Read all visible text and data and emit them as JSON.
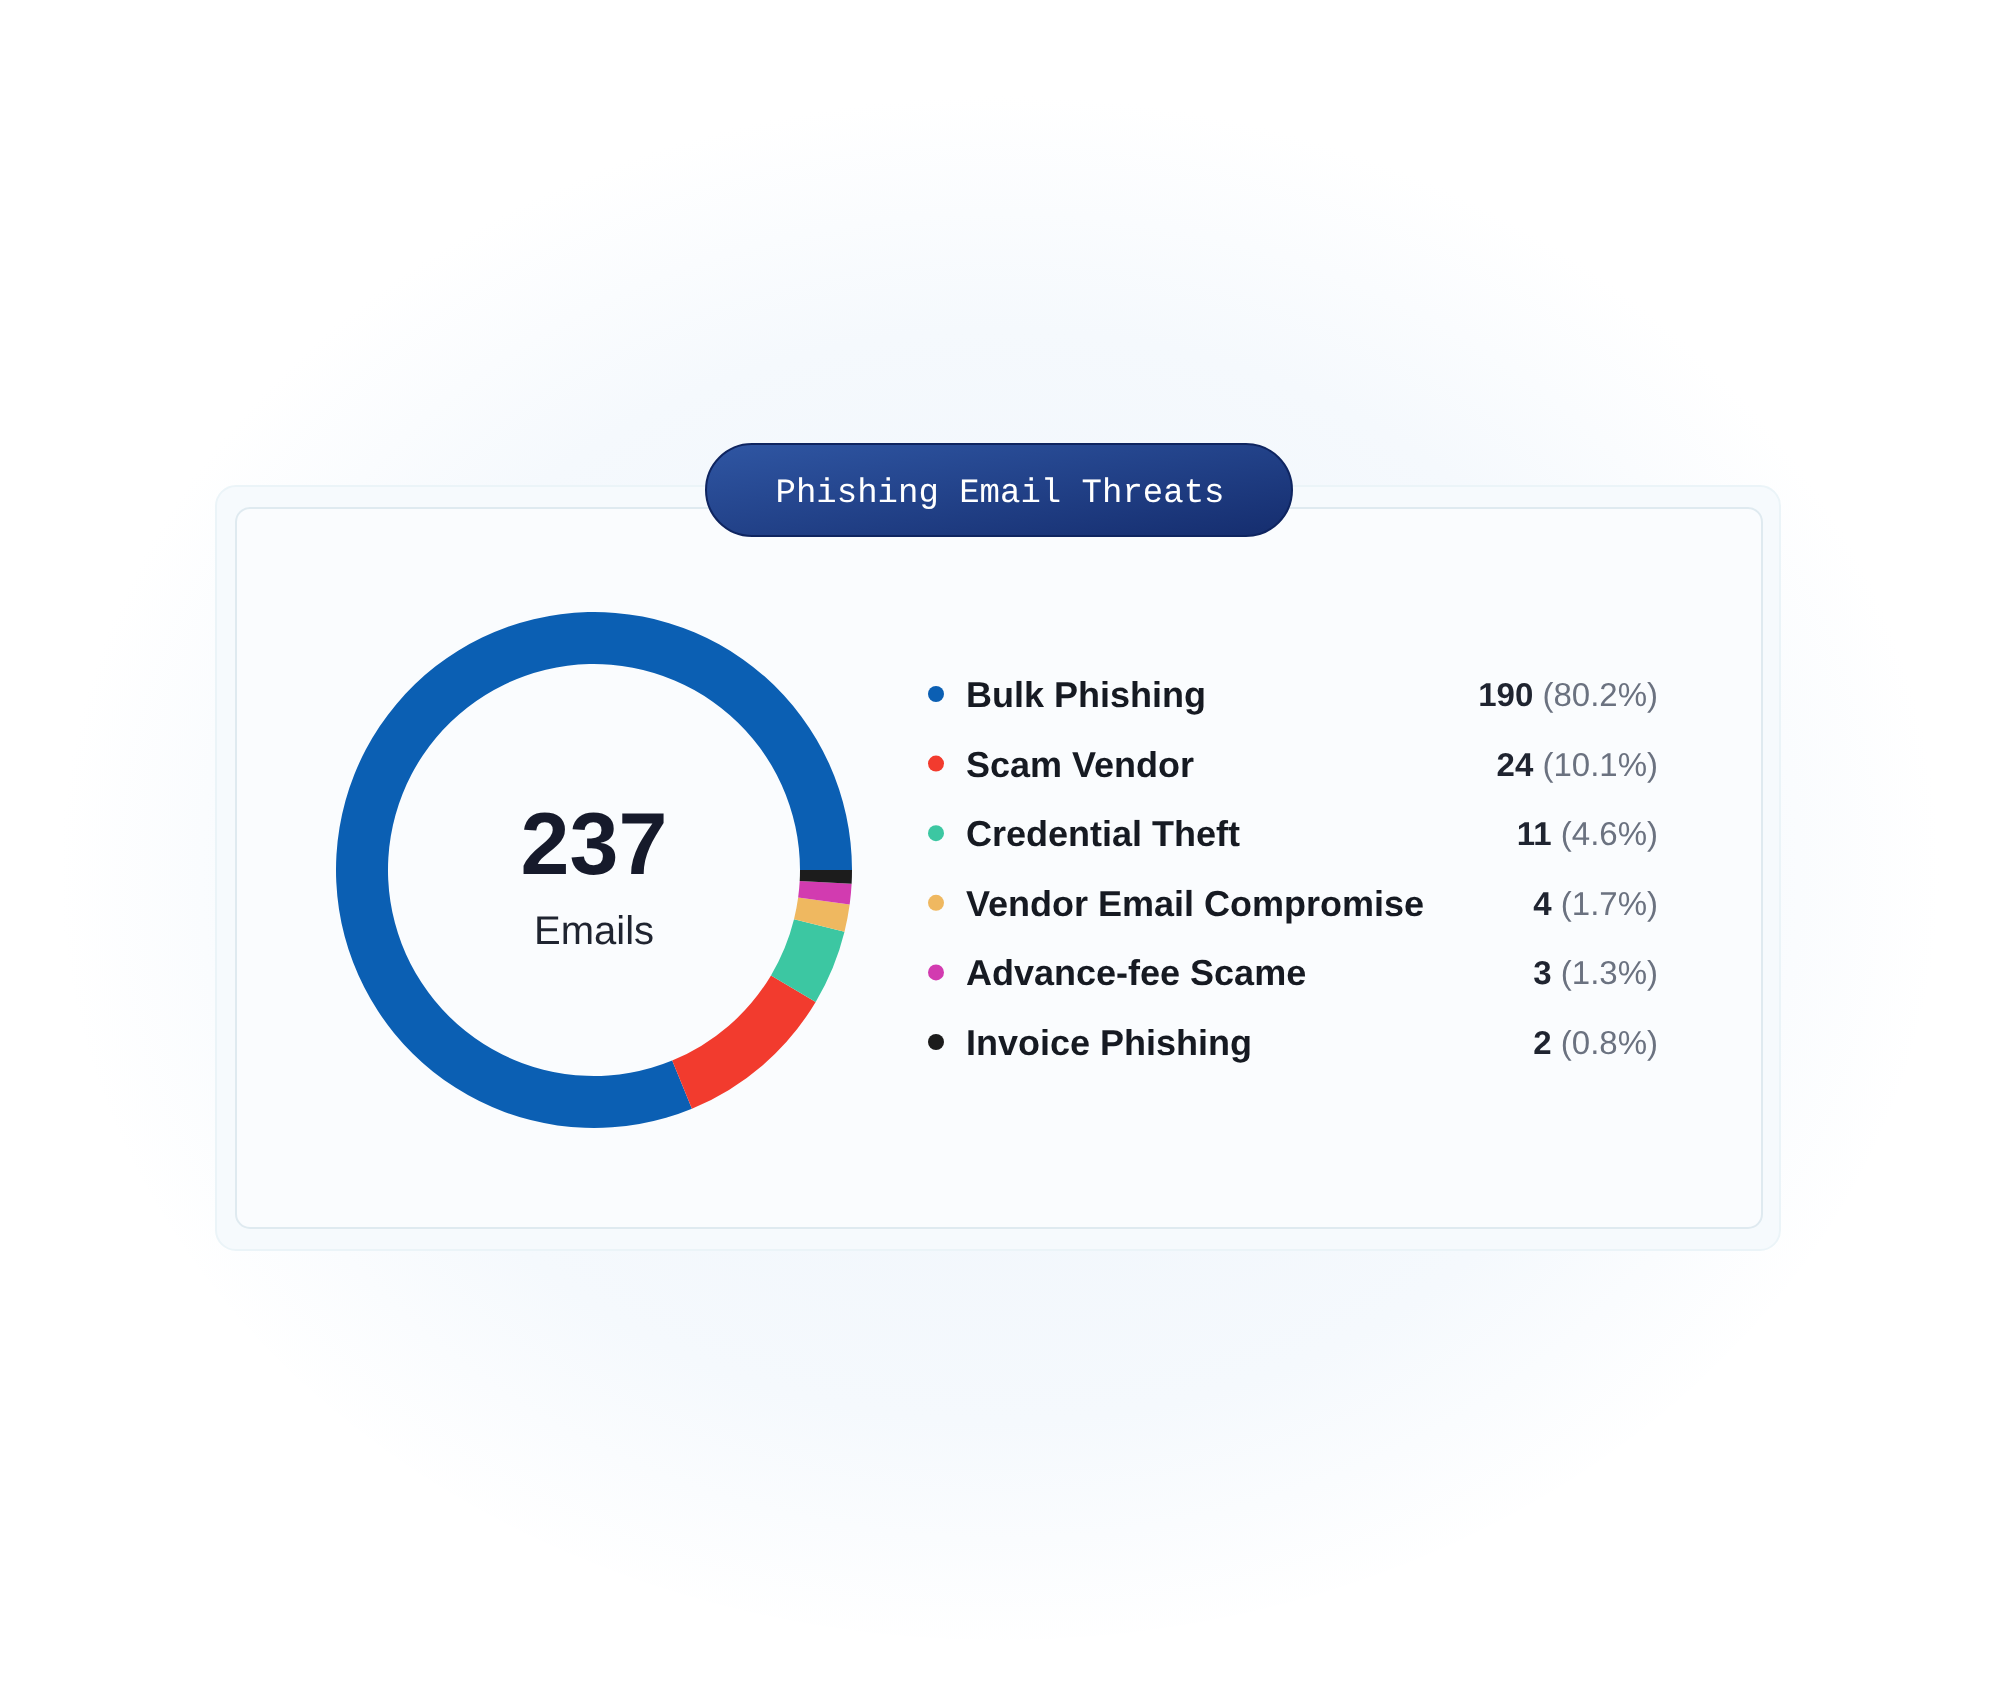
{
  "chart_data": {
    "type": "donut",
    "title": "Phishing Email Threats",
    "categories": [
      "Bulk Phishing",
      "Scam Vendor",
      "Credential Theft",
      "Vendor Email Compromise",
      "Advance-fee Scame",
      "Invoice Phishing"
    ],
    "values": [
      190,
      24,
      11,
      4,
      3,
      2
    ],
    "colors": [
      "#0b5fb3",
      "#f23b2e",
      "#3cc7a2",
      "#efb860",
      "#d23bb0",
      "#1c1c1c"
    ],
    "value_labels": [
      "190 (80.2%)",
      "24 (10.1%)",
      "11 (4.6%)",
      "4 (1.7%)",
      "3 (1.3%)",
      "2 (0.8%)"
    ],
    "annotations": [
      "237",
      "Emails"
    ],
    "legend": "right"
  }
}
